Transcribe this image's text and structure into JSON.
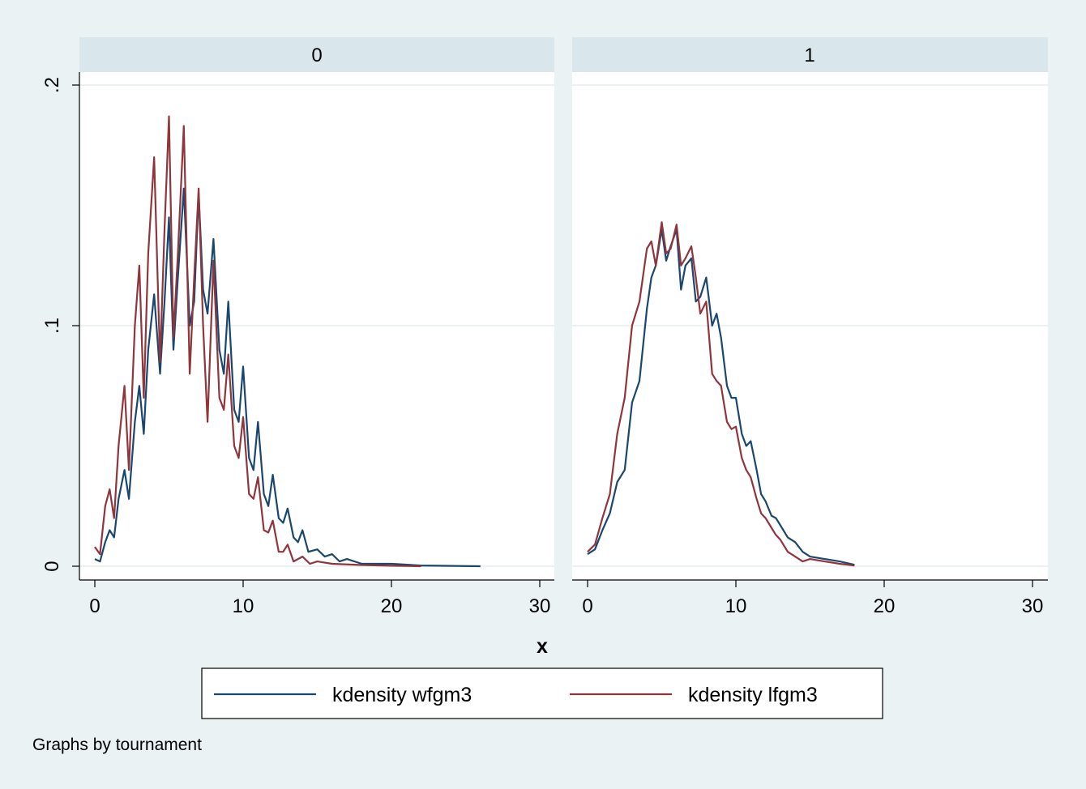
{
  "chart_data": {
    "type": "line",
    "panels": [
      {
        "label": "0",
        "series": [
          {
            "name": "kdensity wfgm3",
            "color": "#1a476f",
            "points": [
              [
                0,
                0.003
              ],
              [
                0.35,
                0.002
              ],
              [
                0.7,
                0.01
              ],
              [
                1.0,
                0.015
              ],
              [
                1.3,
                0.012
              ],
              [
                1.6,
                0.028
              ],
              [
                2.0,
                0.04
              ],
              [
                2.3,
                0.028
              ],
              [
                2.7,
                0.06
              ],
              [
                3.0,
                0.075
              ],
              [
                3.3,
                0.055
              ],
              [
                3.6,
                0.09
              ],
              [
                4.0,
                0.113
              ],
              [
                4.4,
                0.08
              ],
              [
                4.7,
                0.11
              ],
              [
                5.0,
                0.145
              ],
              [
                5.3,
                0.09
              ],
              [
                5.6,
                0.12
              ],
              [
                6.0,
                0.157
              ],
              [
                6.4,
                0.1
              ],
              [
                6.7,
                0.11
              ],
              [
                7.0,
                0.155
              ],
              [
                7.3,
                0.115
              ],
              [
                7.6,
                0.105
              ],
              [
                8.0,
                0.136
              ],
              [
                8.4,
                0.09
              ],
              [
                8.7,
                0.08
              ],
              [
                9.0,
                0.11
              ],
              [
                9.4,
                0.065
              ],
              [
                9.7,
                0.06
              ],
              [
                10.0,
                0.083
              ],
              [
                10.4,
                0.045
              ],
              [
                10.7,
                0.04
              ],
              [
                11.0,
                0.06
              ],
              [
                11.4,
                0.03
              ],
              [
                11.7,
                0.025
              ],
              [
                12.0,
                0.038
              ],
              [
                12.4,
                0.02
              ],
              [
                12.7,
                0.018
              ],
              [
                13.0,
                0.024
              ],
              [
                13.4,
                0.012
              ],
              [
                13.7,
                0.01
              ],
              [
                14.0,
                0.015
              ],
              [
                14.4,
                0.006
              ],
              [
                15.0,
                0.007
              ],
              [
                15.5,
                0.004
              ],
              [
                16.0,
                0.005
              ],
              [
                16.5,
                0.002
              ],
              [
                17.0,
                0.003
              ],
              [
                18.0,
                0.001
              ],
              [
                20.0,
                0.001
              ],
              [
                22.0,
                0.0003
              ],
              [
                26.0,
                0.0
              ]
            ]
          },
          {
            "name": "kdensity lfgm3",
            "color": "#90353b",
            "points": [
              [
                0,
                0.008
              ],
              [
                0.35,
                0.005
              ],
              [
                0.7,
                0.025
              ],
              [
                1.0,
                0.032
              ],
              [
                1.3,
                0.02
              ],
              [
                1.6,
                0.05
              ],
              [
                2.0,
                0.075
              ],
              [
                2.3,
                0.04
              ],
              [
                2.7,
                0.1
              ],
              [
                3.0,
                0.125
              ],
              [
                3.3,
                0.07
              ],
              [
                3.6,
                0.13
              ],
              [
                4.0,
                0.17
              ],
              [
                4.4,
                0.085
              ],
              [
                4.7,
                0.14
              ],
              [
                5.0,
                0.187
              ],
              [
                5.3,
                0.095
              ],
              [
                5.6,
                0.13
              ],
              [
                6.0,
                0.183
              ],
              [
                6.4,
                0.08
              ],
              [
                6.7,
                0.12
              ],
              [
                7.0,
                0.157
              ],
              [
                7.3,
                0.1
              ],
              [
                7.6,
                0.06
              ],
              [
                8.0,
                0.127
              ],
              [
                8.4,
                0.07
              ],
              [
                8.7,
                0.065
              ],
              [
                9.0,
                0.088
              ],
              [
                9.4,
                0.05
              ],
              [
                9.7,
                0.045
              ],
              [
                10.0,
                0.062
              ],
              [
                10.4,
                0.03
              ],
              [
                10.7,
                0.028
              ],
              [
                11.0,
                0.037
              ],
              [
                11.4,
                0.015
              ],
              [
                11.7,
                0.014
              ],
              [
                12.0,
                0.019
              ],
              [
                12.4,
                0.006
              ],
              [
                12.7,
                0.006
              ],
              [
                13.0,
                0.009
              ],
              [
                13.4,
                0.002
              ],
              [
                13.7,
                0.003
              ],
              [
                14.0,
                0.004
              ],
              [
                14.5,
                0.001
              ],
              [
                15.0,
                0.002
              ],
              [
                16.0,
                0.001
              ],
              [
                18.0,
                0.0005
              ],
              [
                20.0,
                0.0002
              ],
              [
                22.0,
                0.0
              ]
            ]
          }
        ]
      },
      {
        "label": "1",
        "series": [
          {
            "name": "kdensity wfgm3",
            "color": "#1a476f",
            "points": [
              [
                0,
                0.005
              ],
              [
                0.5,
                0.007
              ],
              [
                1.0,
                0.015
              ],
              [
                1.5,
                0.022
              ],
              [
                2.0,
                0.035
              ],
              [
                2.5,
                0.04
              ],
              [
                3.0,
                0.068
              ],
              [
                3.5,
                0.077
              ],
              [
                4.0,
                0.107
              ],
              [
                4.3,
                0.12
              ],
              [
                4.6,
                0.125
              ],
              [
                5.0,
                0.14
              ],
              [
                5.3,
                0.127
              ],
              [
                5.6,
                0.133
              ],
              [
                6.0,
                0.14
              ],
              [
                6.3,
                0.115
              ],
              [
                6.6,
                0.125
              ],
              [
                7.0,
                0.128
              ],
              [
                7.3,
                0.11
              ],
              [
                7.6,
                0.112
              ],
              [
                8.0,
                0.12
              ],
              [
                8.4,
                0.1
              ],
              [
                8.7,
                0.105
              ],
              [
                9.0,
                0.095
              ],
              [
                9.4,
                0.075
              ],
              [
                9.7,
                0.07
              ],
              [
                10.0,
                0.07
              ],
              [
                10.4,
                0.055
              ],
              [
                10.7,
                0.05
              ],
              [
                11.0,
                0.052
              ],
              [
                11.4,
                0.04
              ],
              [
                11.7,
                0.03
              ],
              [
                12.0,
                0.027
              ],
              [
                12.4,
                0.021
              ],
              [
                12.7,
                0.02
              ],
              [
                13.0,
                0.017
              ],
              [
                13.5,
                0.012
              ],
              [
                14.0,
                0.01
              ],
              [
                14.5,
                0.006
              ],
              [
                15.0,
                0.004
              ],
              [
                16.0,
                0.003
              ],
              [
                17.0,
                0.002
              ],
              [
                18.0,
                0.0006
              ]
            ]
          },
          {
            "name": "kdensity lfgm3",
            "color": "#90353b",
            "points": [
              [
                0,
                0.006
              ],
              [
                0.5,
                0.009
              ],
              [
                1.0,
                0.02
              ],
              [
                1.5,
                0.03
              ],
              [
                2.0,
                0.055
              ],
              [
                2.5,
                0.07
              ],
              [
                3.0,
                0.1
              ],
              [
                3.5,
                0.11
              ],
              [
                4.0,
                0.132
              ],
              [
                4.3,
                0.135
              ],
              [
                4.6,
                0.125
              ],
              [
                5.0,
                0.143
              ],
              [
                5.3,
                0.13
              ],
              [
                5.6,
                0.132
              ],
              [
                6.0,
                0.142
              ],
              [
                6.3,
                0.125
              ],
              [
                6.6,
                0.128
              ],
              [
                7.0,
                0.133
              ],
              [
                7.3,
                0.12
              ],
              [
                7.6,
                0.105
              ],
              [
                8.0,
                0.11
              ],
              [
                8.4,
                0.08
              ],
              [
                8.7,
                0.077
              ],
              [
                9.0,
                0.075
              ],
              [
                9.4,
                0.06
              ],
              [
                9.7,
                0.057
              ],
              [
                10.0,
                0.058
              ],
              [
                10.4,
                0.045
              ],
              [
                10.7,
                0.04
              ],
              [
                11.0,
                0.037
              ],
              [
                11.4,
                0.028
              ],
              [
                11.7,
                0.022
              ],
              [
                12.0,
                0.02
              ],
              [
                12.4,
                0.016
              ],
              [
                12.7,
                0.013
              ],
              [
                13.0,
                0.011
              ],
              [
                13.5,
                0.006
              ],
              [
                14.0,
                0.004
              ],
              [
                14.5,
                0.002
              ],
              [
                15.0,
                0.003
              ],
              [
                16.0,
                0.002
              ],
              [
                17.0,
                0.001
              ],
              [
                18.0,
                0.0003
              ]
            ]
          }
        ]
      }
    ],
    "xlabel": "x",
    "ylabel": "",
    "xlim": [
      0,
      30
    ],
    "ylim": [
      0,
      0.2
    ],
    "x_ticks": [
      0,
      10,
      20,
      30
    ],
    "x_tick_labels": [
      "0",
      "10",
      "20",
      "30"
    ],
    "y_ticks": [
      0,
      0.1,
      0.2
    ],
    "y_tick_labels": [
      "0",
      ".1",
      ".2"
    ],
    "grid": true,
    "legend": {
      "placement": "bottom",
      "entries": [
        {
          "label": "kdensity wfgm3",
          "color": "#1a476f"
        },
        {
          "label": "kdensity lfgm3",
          "color": "#90353b"
        }
      ]
    },
    "note": "Graphs by tournament"
  }
}
